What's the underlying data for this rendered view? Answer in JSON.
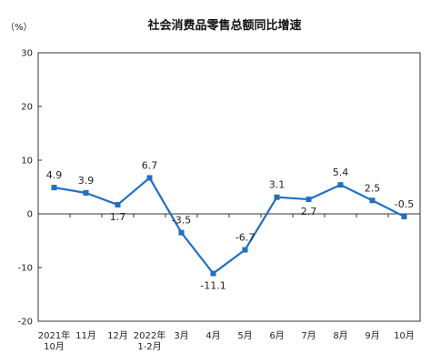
{
  "chart_data": {
    "type": "line",
    "title": "社会消费品零售总额同比增速",
    "ylabel": "（%）",
    "xlabel": "",
    "ylim": [
      -20,
      30
    ],
    "yticks": [
      -20,
      -10,
      0,
      10,
      20,
      30
    ],
    "categories": [
      [
        "2021年",
        "10月"
      ],
      [
        "11月"
      ],
      [
        "12月"
      ],
      [
        "2022年",
        "1-2月"
      ],
      [
        "3月"
      ],
      [
        "4月"
      ],
      [
        "5月"
      ],
      [
        "6月"
      ],
      [
        "7月"
      ],
      [
        "8月"
      ],
      [
        "9月"
      ],
      [
        "10月"
      ]
    ],
    "values": [
      4.9,
      3.9,
      1.7,
      6.7,
      -3.5,
      -11.1,
      -6.7,
      3.1,
      2.7,
      5.4,
      2.5,
      -0.5
    ],
    "data_labels": [
      "4.9",
      "3.9",
      "1.7",
      "6.7",
      "-3.5",
      "-11.1",
      "-6.7",
      "3.1",
      "2.7",
      "5.4",
      "2.5",
      "-0.5"
    ],
    "grid": false,
    "legend": "none",
    "colors": {
      "line": "#1f6fc5",
      "axis": "#333333"
    }
  }
}
